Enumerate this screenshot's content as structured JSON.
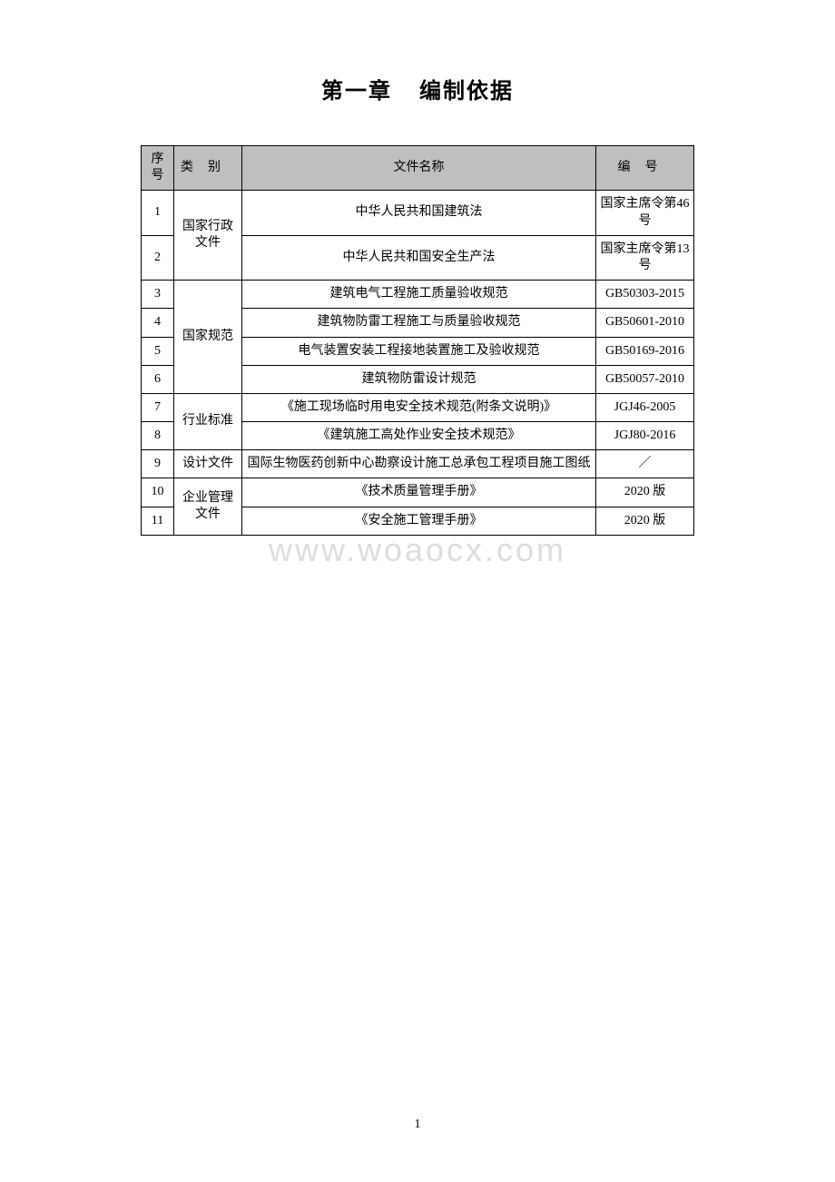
{
  "title": {
    "chapter": "第一章",
    "name": "编制依据"
  },
  "table": {
    "headers": {
      "seq": "序号",
      "category": "类别",
      "filename": "文件名称",
      "code": "编号"
    },
    "categories": {
      "gov": "国家行政文件",
      "std": "国家规范",
      "ind": "行业标准",
      "design": "设计文件",
      "corp": "企业管理文件"
    },
    "rows": [
      {
        "seq": "1",
        "filename": "中华人民共和国建筑法",
        "code": "国家主席令第46 号"
      },
      {
        "seq": "2",
        "filename": "中华人民共和国安全生产法",
        "code": "国家主席令第13 号"
      },
      {
        "seq": "3",
        "filename": "建筑电气工程施工质量验收规范",
        "code": "GB50303-2015"
      },
      {
        "seq": "4",
        "filename": "建筑物防雷工程施工与质量验收规范",
        "code": "GB50601-2010"
      },
      {
        "seq": "5",
        "filename": "电气装置安装工程接地装置施工及验收规范",
        "code": "GB50169-2016"
      },
      {
        "seq": "6",
        "filename": "建筑物防雷设计规范",
        "code": "GB50057-2010"
      },
      {
        "seq": "7",
        "filename": "《施工现场临时用电安全技术规范(附条文说明)》",
        "code": "JGJ46-2005"
      },
      {
        "seq": "8",
        "filename": "《建筑施工高处作业安全技术规范》",
        "code": "JGJ80-2016"
      },
      {
        "seq": "9",
        "filename": "国际生物医药创新中心勘察设计施工总承包工程项目施工图纸",
        "code": "／"
      },
      {
        "seq": "10",
        "filename": "《技术质量管理手册》",
        "code": "2020 版"
      },
      {
        "seq": "11",
        "filename": "《安全施工管理手册》",
        "code": "2020 版"
      }
    ]
  },
  "watermark": "www.woaocx.com",
  "pageNumber": "1",
  "colors": {
    "headerBg": "#bfbfbf",
    "border": "#000000",
    "watermark": "#dddddd",
    "text": "#000000",
    "bg": "#ffffff"
  }
}
